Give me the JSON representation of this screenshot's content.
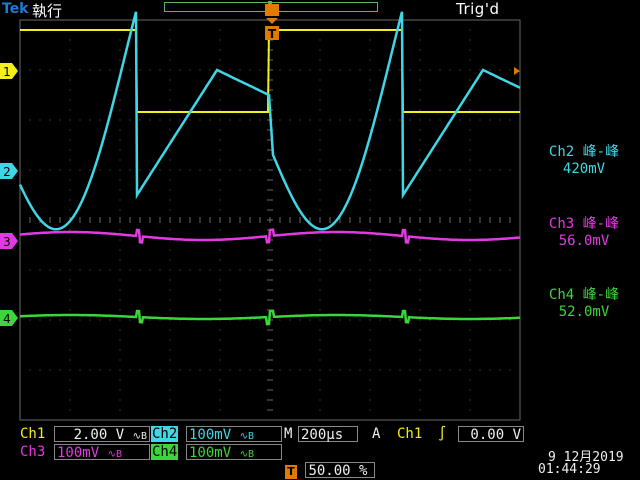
{
  "header": {
    "brand": "Tek",
    "run_state": "執行",
    "trigger_status": "Trig'd",
    "trigger_marker": "T"
  },
  "channels": {
    "ch1_marker": "1",
    "ch2_marker": "2",
    "ch3_marker": "3",
    "ch4_marker": "4"
  },
  "measurements": [
    {
      "label": "Ch2 峰-峰",
      "value": "420mV",
      "color": "#3fd6e6"
    },
    {
      "label": "Ch3 峰-峰",
      "value": "56.0mV",
      "color": "#e23ae2"
    },
    {
      "label": "Ch4 峰-峰",
      "value": "52.0mV",
      "color": "#3ad63a"
    }
  ],
  "status": {
    "ch1_label": "Ch1",
    "ch1_scale": "2.00 V",
    "ch1_bw": "∿B",
    "ch2_label": "Ch2",
    "ch2_scale": "100mV",
    "ch2_bw": "∿B",
    "ch3_label": "Ch3",
    "ch3_scale": "100mV",
    "ch3_bw": "∿B",
    "ch4_label": "Ch4",
    "ch4_scale": "100mV",
    "ch4_bw": "∿B",
    "timebase_prefix": "M",
    "timebase": "200µs",
    "trigger_mode": "A",
    "trigger_source": "Ch1",
    "trigger_slope": "∫",
    "trigger_level": "0.00 V",
    "trigger_position_icon": "T",
    "trigger_position": "50.00 %",
    "date": "9 12月2019",
    "time": "01:44:29"
  },
  "colors": {
    "ch1": "#f2ef1c",
    "ch2": "#3fd6e6",
    "ch3": "#e23ae2",
    "ch4": "#3ad63a",
    "grid": "#6a6a6a",
    "trigger": "#e07b00"
  },
  "icons": {
    "trigger_position": "t-marker-icon",
    "trigger_level": "left-arrow-icon"
  }
}
